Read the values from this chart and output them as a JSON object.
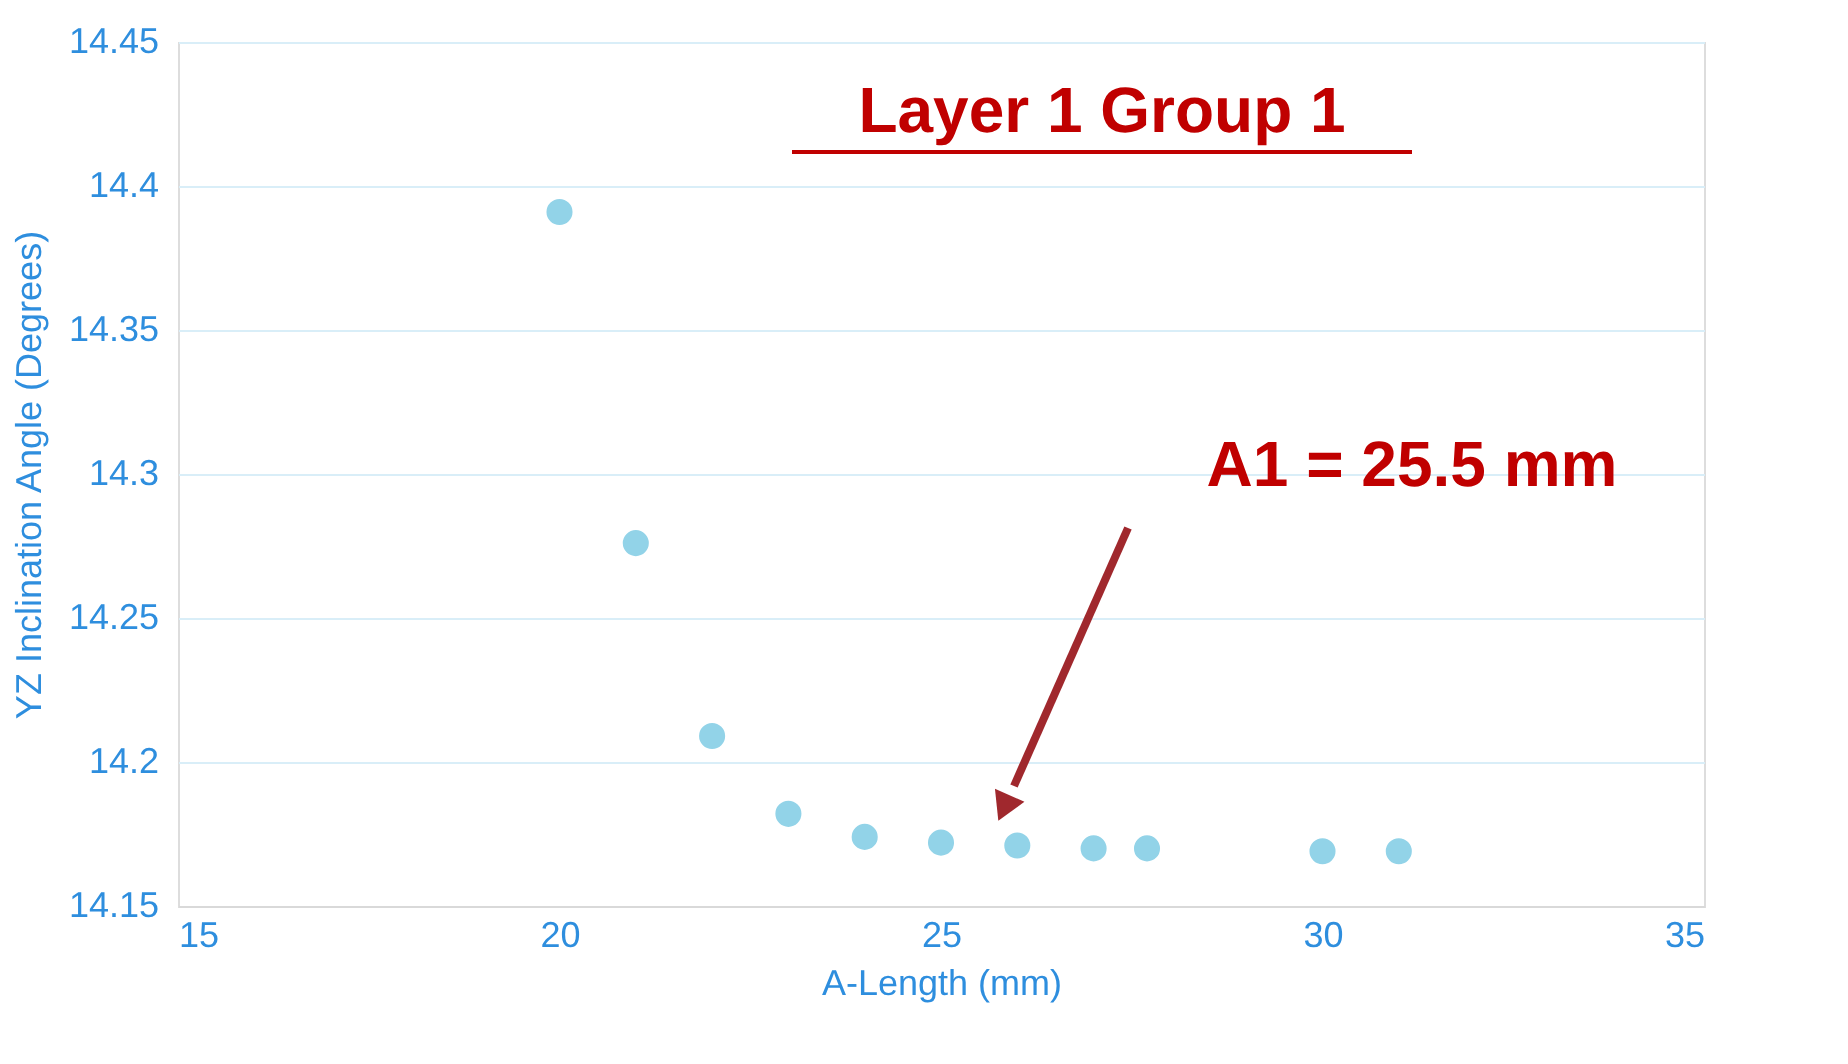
{
  "chart_data": {
    "type": "scatter",
    "title": "Layer 1 Group 1",
    "xlabel": "A-Length (mm)",
    "ylabel": "YZ Inclination Angle (Degrees)",
    "x": [
      20,
      21,
      22,
      23,
      24,
      25,
      26,
      27,
      27.7,
      30,
      31
    ],
    "series": [
      {
        "color": "#92d3e8",
        "values": [
          14.391,
          14.276,
          14.209,
          14.182,
          14.174,
          14.172,
          14.171,
          14.17,
          14.17,
          14.169,
          14.169
        ]
      }
    ],
    "xlim": [
      15,
      35
    ],
    "xticks": [
      15,
      20,
      25,
      30,
      35
    ],
    "ylim": [
      14.15,
      14.45
    ],
    "yticks": [
      14.15,
      14.2,
      14.25,
      14.3,
      14.35,
      14.4,
      14.45
    ],
    "annotations": [
      "A1 = 25.5 mm"
    ],
    "grid": "y",
    "marker": "circle"
  }
}
